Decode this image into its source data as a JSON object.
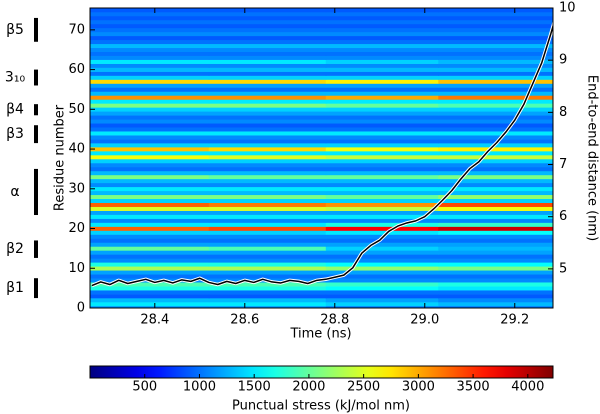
{
  "chart_data": {
    "type": "heatmap",
    "xlabel": "Time (ns)",
    "ylabel": "Residue number",
    "y2label": "End-to-end distance (nm)",
    "colorbar_label": "Punctual stress (kJ/mol nm)",
    "colormap": "jet",
    "xlim": [
      28.256,
      29.285
    ],
    "xticks": [
      28.4,
      28.6,
      28.8,
      {
        "value": 29,
        "label": "29.0"
      },
      29.2
    ],
    "ylim": [
      0,
      75.5
    ],
    "yticks": [
      0,
      10,
      20,
      30,
      40,
      50,
      60,
      70
    ],
    "y2lim": [
      4.25,
      10
    ],
    "y2ticks": [
      5,
      6,
      7,
      8,
      9,
      10
    ],
    "clim": [
      0,
      4230
    ],
    "cticks": [
      500,
      1000,
      1500,
      2000,
      2500,
      3000,
      3500,
      4000
    ],
    "x_edges": [
      28.256,
      28.52,
      28.78,
      29.03,
      29.285
    ],
    "residues": [
      0,
      1,
      2,
      3,
      4,
      5,
      6,
      7,
      8,
      9,
      10,
      11,
      12,
      13,
      14,
      15,
      16,
      17,
      18,
      19,
      20,
      21,
      22,
      23,
      24,
      25,
      26,
      27,
      28,
      29,
      30,
      31,
      32,
      33,
      34,
      35,
      36,
      37,
      38,
      39,
      40,
      41,
      42,
      43,
      44,
      45,
      46,
      47,
      48,
      49,
      50,
      51,
      52,
      53,
      54,
      55,
      56,
      57,
      58,
      59,
      60,
      61,
      62,
      63,
      64,
      65,
      66,
      67,
      68,
      69,
      70,
      71,
      72,
      73,
      74,
      75
    ],
    "z": [
      [
        1100,
        1100,
        1000,
        1000
      ],
      [
        1500,
        1500,
        1400,
        1300
      ],
      [
        1300,
        1300,
        1200,
        1100
      ],
      [
        900,
        900,
        900,
        900
      ],
      [
        1000,
        1000,
        1000,
        1000
      ],
      [
        1700,
        1700,
        1600,
        1500
      ],
      [
        1900,
        1900,
        1800,
        1700
      ],
      [
        1100,
        1100,
        1100,
        1100
      ],
      [
        1000,
        1000,
        1000,
        1000
      ],
      [
        1200,
        1200,
        1200,
        1200
      ],
      [
        2300,
        2300,
        2200,
        2100
      ],
      [
        1700,
        1700,
        1600,
        1600
      ],
      [
        1100,
        1100,
        1100,
        1100
      ],
      [
        1000,
        1000,
        1000,
        1000
      ],
      [
        1200,
        1200,
        1200,
        1200
      ],
      [
        2000,
        1900,
        1400,
        1300
      ],
      [
        1200,
        1200,
        1200,
        1200
      ],
      [
        1000,
        1000,
        1000,
        1000
      ],
      [
        1100,
        1100,
        1100,
        1100
      ],
      [
        1400,
        1400,
        1500,
        1600
      ],
      [
        3300,
        3400,
        3700,
        3900
      ],
      [
        1500,
        1500,
        1700,
        1800
      ],
      [
        1100,
        1100,
        1100,
        1100
      ],
      [
        1500,
        1500,
        1500,
        1500
      ],
      [
        1200,
        1200,
        1200,
        1200
      ],
      [
        2500,
        2500,
        2400,
        2600
      ],
      [
        3300,
        3200,
        3100,
        3400
      ],
      [
        1400,
        1400,
        1400,
        1400
      ],
      [
        2100,
        2100,
        2000,
        2200
      ],
      [
        1300,
        1300,
        1300,
        1300
      ],
      [
        1500,
        1500,
        1500,
        1500
      ],
      [
        1100,
        1100,
        1100,
        1100
      ],
      [
        1300,
        1300,
        1300,
        1300
      ],
      [
        2100,
        2000,
        2000,
        2100
      ],
      [
        1300,
        1300,
        1300,
        1300
      ],
      [
        1000,
        1000,
        1000,
        1000
      ],
      [
        1100,
        1100,
        1100,
        1100
      ],
      [
        1400,
        1400,
        1400,
        1400
      ],
      [
        2600,
        2500,
        2400,
        2400
      ],
      [
        1500,
        1500,
        1500,
        1500
      ],
      [
        2900,
        2800,
        2600,
        2700
      ],
      [
        1400,
        1400,
        1400,
        1400
      ],
      [
        1000,
        1000,
        1000,
        1000
      ],
      [
        1100,
        1100,
        1100,
        1100
      ],
      [
        1500,
        1500,
        1500,
        1500
      ],
      [
        1000,
        1000,
        1000,
        1000
      ],
      [
        900,
        900,
        900,
        900
      ],
      [
        1100,
        1100,
        1100,
        1100
      ],
      [
        1000,
        1000,
        1000,
        1000
      ],
      [
        1200,
        1200,
        1200,
        1200
      ],
      [
        1400,
        1400,
        1400,
        1400
      ],
      [
        2100,
        2100,
        2000,
        1900
      ],
      [
        1500,
        1500,
        1500,
        1500
      ],
      [
        3100,
        3100,
        3000,
        3200
      ],
      [
        1300,
        1300,
        1300,
        1300
      ],
      [
        1000,
        1000,
        1000,
        1000
      ],
      [
        1200,
        1200,
        1200,
        1200
      ],
      [
        2800,
        2800,
        2700,
        2900
      ],
      [
        1400,
        1400,
        1400,
        1400
      ],
      [
        1000,
        1000,
        1000,
        1000
      ],
      [
        1300,
        1300,
        1300,
        1300
      ],
      [
        1100,
        1100,
        1100,
        1100
      ],
      [
        1500,
        1500,
        1400,
        1300
      ],
      [
        1100,
        1100,
        1100,
        1100
      ],
      [
        1000,
        1000,
        1000,
        1000
      ],
      [
        1100,
        1100,
        1100,
        1100
      ],
      [
        1300,
        1300,
        1300,
        1300
      ],
      [
        1000,
        1000,
        1000,
        1000
      ],
      [
        900,
        900,
        900,
        900
      ],
      [
        1100,
        1100,
        1100,
        1100
      ],
      [
        1000,
        1000,
        1000,
        1000
      ],
      [
        900,
        900,
        900,
        900
      ],
      [
        1000,
        1000,
        1000,
        1000
      ],
      [
        900,
        900,
        900,
        900
      ],
      [
        1000,
        1000,
        1000,
        1000
      ],
      [
        900,
        900,
        900,
        900
      ]
    ],
    "series": [
      {
        "color": "#000000",
        "axis": "y2",
        "x": [
          28.26,
          28.28,
          28.3,
          28.32,
          28.34,
          28.36,
          28.38,
          28.4,
          28.42,
          28.44,
          28.46,
          28.48,
          28.5,
          28.52,
          28.54,
          28.56,
          28.58,
          28.6,
          28.62,
          28.64,
          28.66,
          28.68,
          28.7,
          28.72,
          28.74,
          28.76,
          28.78,
          28.8,
          28.82,
          28.84,
          28.86,
          28.88,
          28.9,
          28.92,
          28.94,
          28.96,
          28.98,
          29.0,
          29.02,
          29.04,
          29.06,
          29.08,
          29.1,
          29.12,
          29.14,
          29.16,
          29.18,
          29.2,
          29.22,
          29.24,
          29.26,
          29.28,
          29.29
        ],
        "values": [
          4.68,
          4.75,
          4.7,
          4.78,
          4.72,
          4.76,
          4.8,
          4.74,
          4.78,
          4.73,
          4.79,
          4.76,
          4.82,
          4.74,
          4.7,
          4.76,
          4.72,
          4.78,
          4.74,
          4.8,
          4.75,
          4.73,
          4.78,
          4.76,
          4.72,
          4.78,
          4.8,
          4.84,
          4.88,
          5.02,
          5.3,
          5.45,
          5.55,
          5.72,
          5.82,
          5.88,
          5.92,
          6.0,
          6.15,
          6.32,
          6.5,
          6.72,
          6.92,
          7.05,
          7.25,
          7.42,
          7.62,
          7.85,
          8.15,
          8.55,
          8.95,
          9.5,
          9.8
        ]
      }
    ],
    "annotations": [
      {
        "text": "β5",
        "from": 67,
        "to": 73
      },
      {
        "text": "3₁₀",
        "from": 56,
        "to": 60
      },
      {
        "text": "β4",
        "from": 48.5,
        "to": 51.3
      },
      {
        "text": "β3",
        "from": 41.5,
        "to": 46
      },
      {
        "text": "α",
        "from": 23.4,
        "to": 35
      },
      {
        "text": "β2",
        "from": 12.6,
        "to": 17
      },
      {
        "text": "β1",
        "from": 2.5,
        "to": 7.5
      }
    ]
  }
}
